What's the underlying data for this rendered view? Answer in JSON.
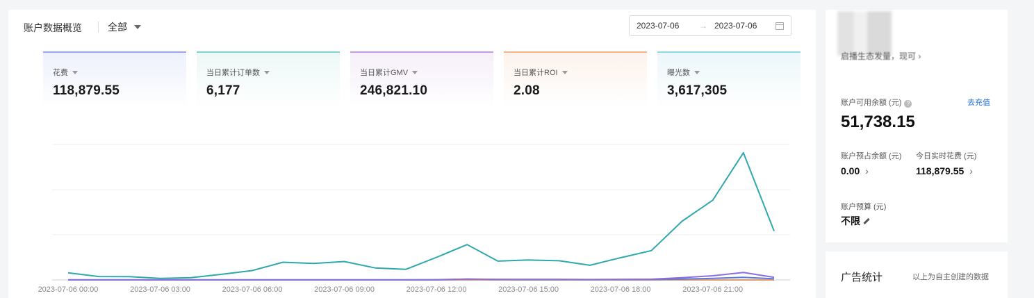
{
  "overview": {
    "title": "账户数据概览",
    "scope": "全部",
    "date_start": "2023-07-06",
    "date_end": "2023-07-06",
    "date_separator": "→"
  },
  "metrics": [
    {
      "label": "花费",
      "value": "118,879.55",
      "accent": "#9aa6e8",
      "bg": "#eef1fc"
    },
    {
      "label": "当日累计订单数",
      "value": "6,177",
      "accent": "#7fd3cd",
      "bg": "#edf8f7"
    },
    {
      "label": "当日累计GMV",
      "value": "246,821.10",
      "accent": "#c99ae0",
      "bg": "#f6effa"
    },
    {
      "label": "当日累计ROI",
      "value": "2.08",
      "accent": "#f0b58a",
      "bg": "#fdf3ec"
    },
    {
      "label": "曝光数",
      "value": "3,617,305",
      "accent": "#8fd6e8",
      "bg": "#ecf7fa"
    }
  ],
  "chart_data": {
    "type": "line",
    "x": [
      "2023-07-06 00:00",
      "01:00",
      "02:00",
      "2023-07-06 03:00",
      "04:00",
      "05:00",
      "2023-07-06 06:00",
      "07:00",
      "08:00",
      "2023-07-06 09:00",
      "10:00",
      "11:00",
      "2023-07-06 12:00",
      "13:00",
      "14:00",
      "2023-07-06 15:00",
      "16:00",
      "17:00",
      "2023-07-06 18:00",
      "19:00",
      "20:00",
      "2023-07-06 21:00",
      "22:00",
      "23:00"
    ],
    "tick_labels": [
      "2023-07-06 00:00",
      "2023-07-06 03:00",
      "2023-07-06 06:00",
      "2023-07-06 09:00",
      "2023-07-06 12:00",
      "2023-07-06 15:00",
      "2023-07-06 18:00",
      "2023-07-06 21:00"
    ],
    "series": [
      {
        "color": "#2fa8ad",
        "values": [
          9.5,
          4.5,
          4.4,
          2.0,
          3.0,
          7.5,
          12.5,
          23.5,
          22.0,
          24.5,
          16.0,
          14.0,
          30.0,
          47.0,
          25.0,
          26.5,
          25.5,
          19.5,
          29.5,
          39.0,
          78.0,
          106.0,
          169.0,
          65.0
        ]
      },
      {
        "color": "#8b6fe0",
        "values": [
          0,
          0,
          0,
          0,
          0,
          0,
          0,
          0,
          0,
          0,
          0,
          0,
          0,
          1.2,
          0.8,
          0.8,
          0.8,
          0.6,
          0.8,
          1.0,
          3.0,
          5.5,
          10.0,
          3.5
        ]
      },
      {
        "color": "#5a78d8",
        "values": [
          0.3,
          0.3,
          0.3,
          0.3,
          0.3,
          0.3,
          0.3,
          0.3,
          0.3,
          0.3,
          0.3,
          0.3,
          0.4,
          1.2,
          0.6,
          0.5,
          0.5,
          0.4,
          0.5,
          0.6,
          1.2,
          2.0,
          3.5,
          1.5
        ]
      },
      {
        "color": "#e39a6a",
        "values": [
          0,
          0,
          0,
          0,
          0,
          0,
          0,
          0,
          0,
          0,
          0,
          0,
          0,
          0,
          0,
          0,
          0,
          0,
          0,
          0,
          0,
          0,
          0,
          0
        ]
      }
    ],
    "grid": true,
    "legend": "none"
  },
  "account": {
    "notice": "启播生态发量，现可 ›",
    "available_label": "账户可用余额 (元)",
    "help_icon": "?",
    "recharge_label": "去充值",
    "available_value": "51,738.15",
    "reserved_label": "账户预占余额 (元)",
    "reserved_value": "0.00",
    "realtime_spend_label": "今日实时花费 (元)",
    "realtime_spend_value": "118,879.55",
    "chevron": "›",
    "budget_label": "账户预算 (元)",
    "budget_value": "不限"
  },
  "ad_stats": {
    "title": "广告统计",
    "note": "以上为自主创建的数据"
  }
}
